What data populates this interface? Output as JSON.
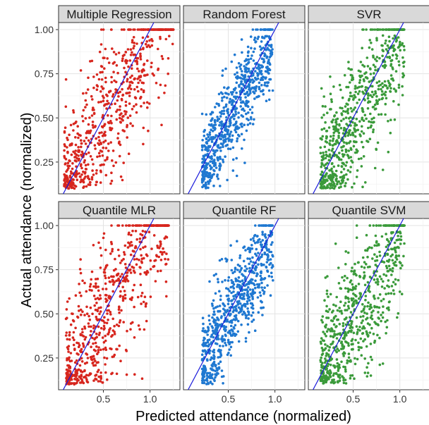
{
  "chart_data": {
    "type": "scatter",
    "layout": "facet_grid_2x3",
    "xlabel": "Predicted attendance (normalized)",
    "ylabel": "Actual attendance (normalized)",
    "xlim": [
      0.02,
      1.32
    ],
    "ylim": [
      0.07,
      1.04
    ],
    "xticks": [
      0.5,
      1.0
    ],
    "xtick_labels": [
      "0.5",
      "1.0"
    ],
    "yticks": [
      0.25,
      0.5,
      0.75,
      1.0
    ],
    "ytick_labels": [
      "0.25",
      "0.50",
      "0.75",
      "1.00"
    ],
    "reference_line": {
      "slope": 1,
      "intercept": 0,
      "color": "#1a1adb"
    },
    "grid": true,
    "panels": [
      {
        "title": "Multiple Regression",
        "color": "#d7261e",
        "x_spread": [
          0.08,
          1.25
        ],
        "noise": 0.22,
        "n_points": 700
      },
      {
        "title": "Random Forest",
        "color": "#1f78d1",
        "x_spread": [
          0.22,
          0.98
        ],
        "noise": 0.13,
        "n_points": 700
      },
      {
        "title": "SVR",
        "color": "#3a9a3a",
        "x_spread": [
          0.15,
          1.05
        ],
        "noise": 0.2,
        "n_points": 700
      },
      {
        "title": "Quantile MLR",
        "color": "#d7261e",
        "x_spread": [
          0.1,
          1.2
        ],
        "noise": 0.22,
        "n_points": 700
      },
      {
        "title": "Quantile RF",
        "color": "#1f78d1",
        "x_spread": [
          0.22,
          0.98
        ],
        "noise": 0.14,
        "n_points": 700
      },
      {
        "title": "Quantile SVM",
        "color": "#3a9a3a",
        "x_spread": [
          0.15,
          1.05
        ],
        "noise": 0.2,
        "n_points": 700
      }
    ]
  }
}
